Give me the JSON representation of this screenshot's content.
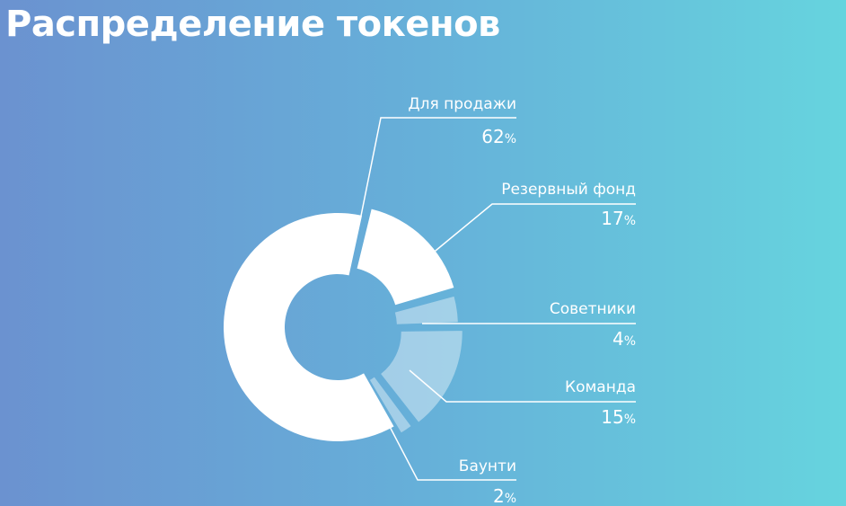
{
  "title": "Распределение токенов",
  "chart_data": {
    "type": "pie",
    "title": "Распределение токенов",
    "donut": true,
    "slices": [
      {
        "label": "Для продажи",
        "value": 62,
        "value_text": "62",
        "unit": "%",
        "color": "#ffffff",
        "opacity": 1
      },
      {
        "label": "Резервный фонд",
        "value": 17,
        "value_text": "17",
        "unit": "%",
        "color": "#ffffff",
        "opacity": 1
      },
      {
        "label": "Советники",
        "value": 4,
        "value_text": "4",
        "unit": "%",
        "color": "#ffffff",
        "opacity": 0.4
      },
      {
        "label": "Команда",
        "value": 15,
        "value_text": "15",
        "unit": "%",
        "color": "#ffffff",
        "opacity": 0.4
      },
      {
        "label": "Баунти",
        "value": 2,
        "value_text": "2",
        "unit": "%",
        "color": "#ffffff",
        "opacity": 0.4
      }
    ]
  }
}
